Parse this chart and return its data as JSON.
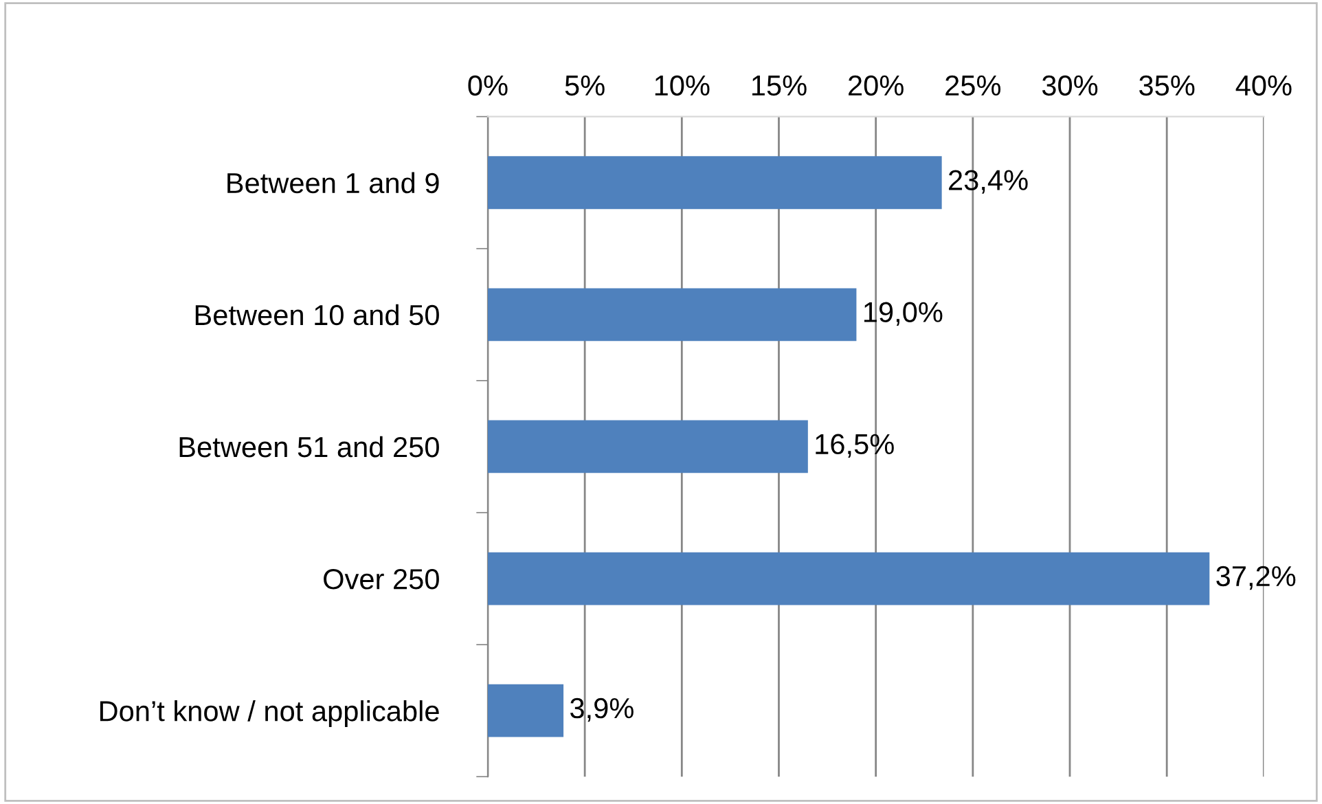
{
  "chart_data": {
    "type": "bar",
    "orientation": "horizontal",
    "categories": [
      "Between 1 and 9",
      "Between 10 and 50",
      "Between 51 and 250",
      "Over 250",
      "Don’t know / not applicable"
    ],
    "values": [
      23.4,
      19.0,
      16.5,
      37.2,
      3.9
    ],
    "value_labels": [
      "23,4%",
      "19,0%",
      "16,5%",
      "37,2%",
      "3,9%"
    ],
    "color": "#4f81bd",
    "xlim": [
      0,
      40
    ],
    "xticks": [
      {
        "value": 0,
        "label": "0%"
      },
      {
        "value": 5,
        "label": "5%"
      },
      {
        "value": 10,
        "label": "10%"
      },
      {
        "value": 15,
        "label": "15%"
      },
      {
        "value": 20,
        "label": "20%"
      },
      {
        "value": 25,
        "label": "25%"
      },
      {
        "value": 30,
        "label": "30%"
      },
      {
        "value": 35,
        "label": "35%"
      },
      {
        "value": 40,
        "label": "40%"
      }
    ],
    "grid": "x",
    "legend": false
  }
}
